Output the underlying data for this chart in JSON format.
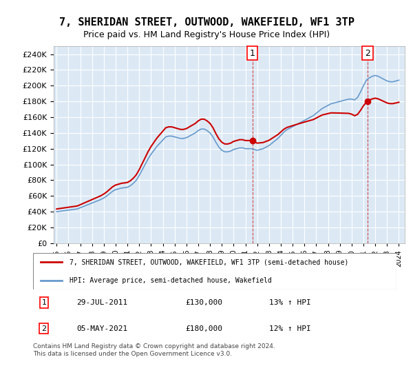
{
  "title": "7, SHERIDAN STREET, OUTWOOD, WAKEFIELD, WF1 3TP",
  "subtitle": "Price paid vs. HM Land Registry's House Price Index (HPI)",
  "ylabel_ticks": [
    "£0",
    "£20K",
    "£40K",
    "£60K",
    "£80K",
    "£100K",
    "£120K",
    "£140K",
    "£160K",
    "£180K",
    "£200K",
    "£220K",
    "£240K"
  ],
  "ylim": [
    0,
    250000
  ],
  "background_color": "#dce9f5",
  "plot_bg": "#dce9f5",
  "legend_label_red": "7, SHERIDAN STREET, OUTWOOD, WAKEFIELD, WF1 3TP (semi-detached house)",
  "legend_label_blue": "HPI: Average price, semi-detached house, Wakefield",
  "annotation1_label": "1",
  "annotation1_date": "29-JUL-2011",
  "annotation1_price": "£130,000",
  "annotation1_pct": "13% ↑ HPI",
  "annotation2_label": "2",
  "annotation2_date": "05-MAY-2021",
  "annotation2_price": "£180,000",
  "annotation2_pct": "12% ↑ HPI",
  "footer": "Contains HM Land Registry data © Crown copyright and database right 2024.\nThis data is licensed under the Open Government Licence v3.0.",
  "red_color": "#cc0000",
  "blue_color": "#6699cc",
  "hpi_x": [
    1995.0,
    1995.25,
    1995.5,
    1995.75,
    1996.0,
    1996.25,
    1996.5,
    1996.75,
    1997.0,
    1997.25,
    1997.5,
    1997.75,
    1998.0,
    1998.25,
    1998.5,
    1998.75,
    1999.0,
    1999.25,
    1999.5,
    1999.75,
    2000.0,
    2000.25,
    2000.5,
    2000.75,
    2001.0,
    2001.25,
    2001.5,
    2001.75,
    2002.0,
    2002.25,
    2002.5,
    2002.75,
    2003.0,
    2003.25,
    2003.5,
    2003.75,
    2004.0,
    2004.25,
    2004.5,
    2004.75,
    2005.0,
    2005.25,
    2005.5,
    2005.75,
    2006.0,
    2006.25,
    2006.5,
    2006.75,
    2007.0,
    2007.25,
    2007.5,
    2007.75,
    2008.0,
    2008.25,
    2008.5,
    2008.75,
    2009.0,
    2009.25,
    2009.5,
    2009.75,
    2010.0,
    2010.25,
    2010.5,
    2010.75,
    2011.0,
    2011.25,
    2011.5,
    2011.75,
    2012.0,
    2012.25,
    2012.5,
    2012.75,
    2013.0,
    2013.25,
    2013.5,
    2013.75,
    2014.0,
    2014.25,
    2014.5,
    2014.75,
    2015.0,
    2015.25,
    2015.5,
    2015.75,
    2016.0,
    2016.25,
    2016.5,
    2016.75,
    2017.0,
    2017.25,
    2017.5,
    2017.75,
    2018.0,
    2018.25,
    2018.5,
    2018.75,
    2019.0,
    2019.25,
    2019.5,
    2019.75,
    2020.0,
    2020.25,
    2020.5,
    2020.75,
    2021.0,
    2021.25,
    2021.5,
    2021.75,
    2022.0,
    2022.25,
    2022.5,
    2022.75,
    2023.0,
    2023.25,
    2023.5,
    2023.75,
    2024.0
  ],
  "hpi_y": [
    40000,
    40500,
    41000,
    41500,
    42000,
    42500,
    43000,
    43500,
    45000,
    46500,
    48000,
    49500,
    51000,
    52500,
    54000,
    55500,
    57500,
    60000,
    63000,
    66000,
    68000,
    69000,
    70000,
    70500,
    71000,
    73000,
    76000,
    80000,
    86000,
    93000,
    100000,
    107000,
    113000,
    118000,
    123000,
    127000,
    131000,
    135000,
    136000,
    136000,
    135000,
    134000,
    133000,
    133000,
    134000,
    136000,
    138000,
    140000,
    143000,
    145000,
    145000,
    143000,
    140000,
    135000,
    128000,
    122000,
    118000,
    116000,
    116000,
    117000,
    119000,
    120000,
    121000,
    121000,
    120000,
    120000,
    120000,
    119000,
    118000,
    119000,
    120000,
    122000,
    124000,
    127000,
    130000,
    133000,
    137000,
    141000,
    144000,
    146000,
    148000,
    150000,
    152000,
    154000,
    156000,
    158000,
    160000,
    162000,
    165000,
    168000,
    171000,
    173000,
    175000,
    177000,
    178000,
    179000,
    180000,
    181000,
    182000,
    183000,
    183000,
    182000,
    185000,
    192000,
    200000,
    207000,
    210000,
    212000,
    213000,
    212000,
    210000,
    208000,
    206000,
    205000,
    205000,
    206000,
    207000
  ],
  "sale1_x": 2011.58,
  "sale1_y": 130000,
  "sale2_x": 2021.35,
  "sale2_y": 180000,
  "xticks": [
    1995,
    1996,
    1997,
    1998,
    1999,
    2000,
    2001,
    2002,
    2003,
    2004,
    2005,
    2006,
    2007,
    2008,
    2009,
    2010,
    2011,
    2012,
    2013,
    2014,
    2015,
    2016,
    2017,
    2018,
    2019,
    2020,
    2021,
    2022,
    2023,
    2024
  ]
}
